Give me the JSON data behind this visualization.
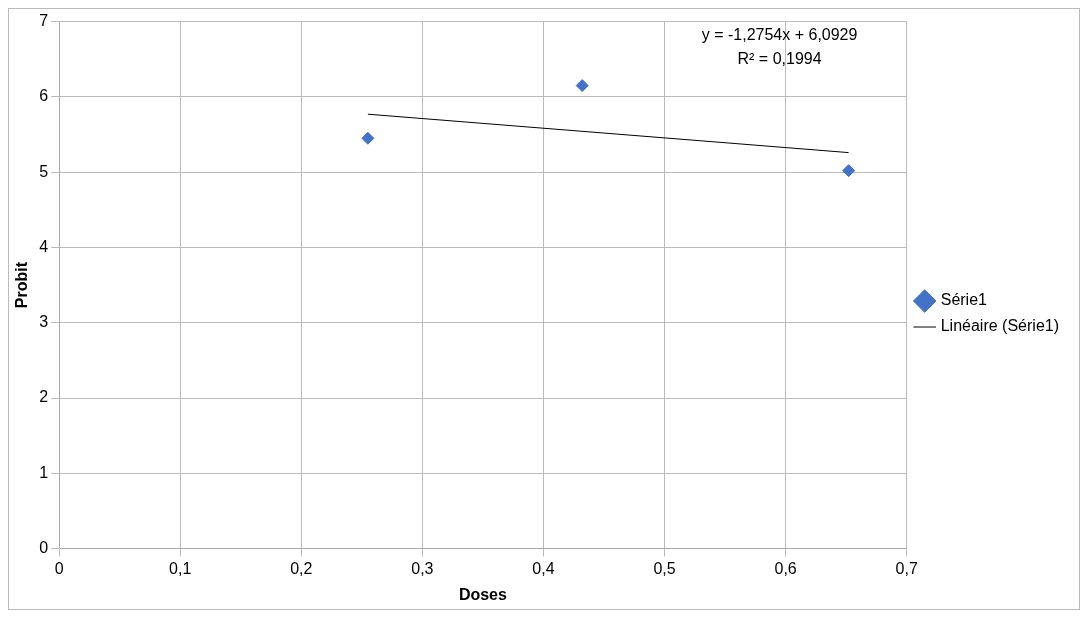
{
  "chart_data": {
    "type": "scatter",
    "xlabel": "Doses",
    "ylabel": "Probit",
    "xlim": [
      0,
      0.7
    ],
    "xticks": [
      0,
      {
        "value": 0.1,
        "label": "0,1"
      },
      {
        "value": 0.2,
        "label": "0,2"
      },
      {
        "value": 0.3,
        "label": "0,3"
      },
      {
        "value": 0.4,
        "label": "0,4"
      },
      {
        "value": 0.5,
        "label": "0,5"
      },
      {
        "value": 0.6,
        "label": "0,6"
      },
      {
        "value": 0.7,
        "label": "0,7"
      }
    ],
    "ylim": [
      0,
      7
    ],
    "yticks": [
      0,
      1,
      2,
      3,
      4,
      5,
      6,
      7
    ],
    "grid": true,
    "legend": "right",
    "series": [
      {
        "name": "Série1",
        "type": "scatter",
        "color": "#4472c4",
        "marker": "diamond",
        "x": [
          0.255,
          0.432,
          0.652
        ],
        "values": [
          5.45,
          6.15,
          5.02
        ]
      },
      {
        "name": "Linéaire (Série1)",
        "type": "line",
        "color": "#000000",
        "marker": "none",
        "line_style": "solid",
        "x": [
          0.255,
          0.652
        ],
        "values": [
          5.77,
          5.26
        ]
      }
    ],
    "annotations": [
      "y = -1,2754x + 6,0929",
      "R² = 0,1994"
    ]
  }
}
